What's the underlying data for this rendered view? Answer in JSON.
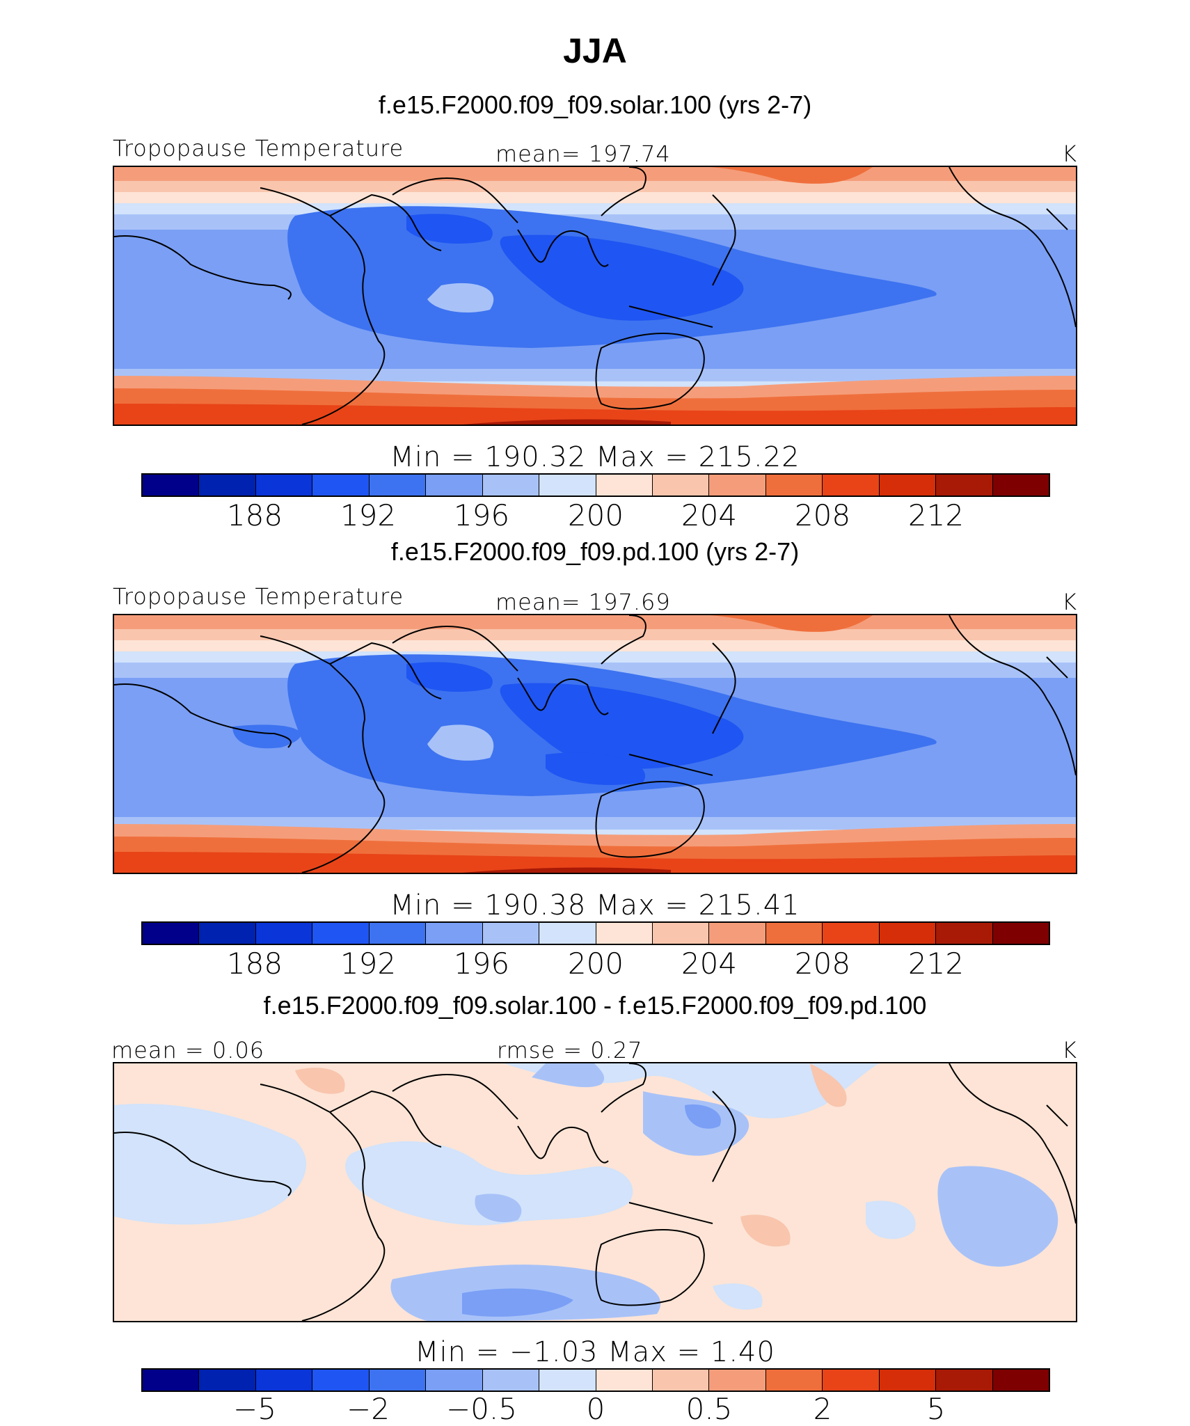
{
  "title": "JJA",
  "panels": [
    {
      "case": "f.e15.F2000.f09_f09.solar.100 (yrs 2-7)",
      "left_label": "Tropopause Temperature",
      "center_label": "mean=  197.74",
      "units": "K",
      "stats": "Min  =  190.32  Max  =  215.22",
      "colorbar_ticks": [
        "188",
        "192",
        "196",
        "200",
        "204",
        "208",
        "212"
      ],
      "colors": [
        "#00008a",
        "#0022b0",
        "#0a35d8",
        "#1f55f2",
        "#3d73f0",
        "#7a9ff5",
        "#a8c2f8",
        "#d2e3fb",
        "#fde4d6",
        "#f9c5ad",
        "#f59d7a",
        "#ef6f3c",
        "#e84418",
        "#d52e08",
        "#a81a06",
        "#7f0000"
      ]
    },
    {
      "case": "f.e15.F2000.f09_f09.pd.100 (yrs 2-7)",
      "left_label": "Tropopause Temperature",
      "center_label": "mean=  197.69",
      "units": "K",
      "stats": "Min  =  190.38  Max  =  215.41",
      "colorbar_ticks": [
        "188",
        "192",
        "196",
        "200",
        "204",
        "208",
        "212"
      ],
      "colors": [
        "#00008a",
        "#0022b0",
        "#0a35d8",
        "#1f55f2",
        "#3d73f0",
        "#7a9ff5",
        "#a8c2f8",
        "#d2e3fb",
        "#fde4d6",
        "#f9c5ad",
        "#f59d7a",
        "#ef6f3c",
        "#e84418",
        "#d52e08",
        "#a81a06",
        "#7f0000"
      ]
    },
    {
      "case": "f.e15.F2000.f09_f09.solar.100 - f.e15.F2000.f09_f09.pd.100",
      "left_label": "mean =    0.06",
      "center_label": "rmse  =    0.27",
      "units": "K",
      "stats": "Min  =   −1.03  Max  =     1.40",
      "colorbar_ticks": [
        "−5",
        "−2",
        "−0.5",
        "0",
        "0.5",
        "2",
        "5"
      ],
      "colors": [
        "#00008a",
        "#0022b0",
        "#0a35d8",
        "#1f55f2",
        "#3d73f0",
        "#7a9ff5",
        "#a8c2f8",
        "#d2e3fb",
        "#fde4d6",
        "#f9c5ad",
        "#f59d7a",
        "#ef6f3c",
        "#e84418",
        "#d52e08",
        "#a81a06",
        "#7f0000"
      ]
    }
  ]
}
